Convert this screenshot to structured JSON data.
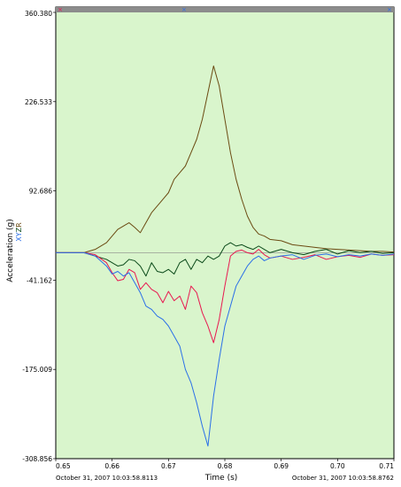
{
  "chart_data": {
    "type": "line",
    "xlabel": "Time (s)",
    "ylabel": "Acceleration (g)",
    "ylabel_letters": [
      "X",
      "Y",
      "Z",
      "R"
    ],
    "xlim": [
      0.65,
      0.71
    ],
    "ylim": [
      -308.856,
      360.38
    ],
    "yticks": [
      "360.380",
      "226.533",
      "92.686",
      "-41.162",
      "-175.009",
      "-308.856"
    ],
    "xticks": [
      "0.65",
      "0.66",
      "0.67",
      "0.68",
      "0.69",
      "0.70",
      "0.71"
    ],
    "start_timestamp": "October 31, 2007 10:03:58.8113",
    "end_timestamp": "October 31, 2007 10:03:58.8762",
    "colors": {
      "plot_bg": "#d9f5cc",
      "X": "#e8174f",
      "Y": "#2a6fe8",
      "Z": "#0b4a1a",
      "R": "#6b4a12",
      "zero_line": "#8a8a8a"
    },
    "series": [
      {
        "name": "X",
        "color": "#e8174f",
        "x": [
          0.65,
          0.655,
          0.657,
          0.659,
          0.66,
          0.661,
          0.662,
          0.663,
          0.664,
          0.665,
          0.666,
          0.667,
          0.668,
          0.669,
          0.67,
          0.671,
          0.672,
          0.673,
          0.674,
          0.675,
          0.676,
          0.677,
          0.678,
          0.679,
          0.68,
          0.681,
          0.682,
          0.683,
          0.684,
          0.685,
          0.686,
          0.687,
          0.688,
          0.69,
          0.692,
          0.694,
          0.696,
          0.698,
          0.7,
          0.702,
          0.704,
          0.706,
          0.708,
          0.71
        ],
        "y": [
          0,
          0,
          -3,
          -15,
          -30,
          -42,
          -40,
          -25,
          -30,
          -55,
          -45,
          -55,
          -60,
          -75,
          -58,
          -72,
          -65,
          -85,
          -50,
          -60,
          -90,
          -110,
          -135,
          -100,
          -50,
          -5,
          2,
          4,
          0,
          -2,
          5,
          -3,
          -8,
          -5,
          -10,
          -7,
          -3,
          -10,
          -6,
          -4,
          -7,
          -2,
          -4,
          -3
        ]
      },
      {
        "name": "Y",
        "color": "#2a6fe8",
        "x": [
          0.65,
          0.655,
          0.657,
          0.659,
          0.66,
          0.661,
          0.662,
          0.663,
          0.664,
          0.665,
          0.666,
          0.667,
          0.668,
          0.669,
          0.67,
          0.671,
          0.672,
          0.673,
          0.674,
          0.675,
          0.676,
          0.677,
          0.678,
          0.679,
          0.68,
          0.681,
          0.682,
          0.683,
          0.684,
          0.685,
          0.686,
          0.687,
          0.688,
          0.69,
          0.692,
          0.694,
          0.696,
          0.698,
          0.7,
          0.702,
          0.704,
          0.706,
          0.708,
          0.71
        ],
        "y": [
          0,
          0,
          -5,
          -20,
          -32,
          -28,
          -35,
          -30,
          -45,
          -60,
          -80,
          -85,
          -95,
          -100,
          -110,
          -125,
          -140,
          -175,
          -195,
          -225,
          -260,
          -290,
          -215,
          -160,
          -110,
          -80,
          -50,
          -35,
          -20,
          -10,
          -5,
          -12,
          -8,
          -5,
          -3,
          -10,
          -4,
          -2,
          -6,
          -3,
          -5,
          -2,
          -4,
          -2
        ]
      },
      {
        "name": "Z",
        "color": "#0b4a1a",
        "x": [
          0.65,
          0.655,
          0.657,
          0.659,
          0.66,
          0.661,
          0.662,
          0.663,
          0.664,
          0.665,
          0.666,
          0.667,
          0.668,
          0.669,
          0.67,
          0.671,
          0.672,
          0.673,
          0.674,
          0.675,
          0.676,
          0.677,
          0.678,
          0.679,
          0.68,
          0.681,
          0.682,
          0.683,
          0.684,
          0.685,
          0.686,
          0.687,
          0.688,
          0.69,
          0.692,
          0.694,
          0.696,
          0.698,
          0.7,
          0.702,
          0.704,
          0.706,
          0.708,
          0.71
        ],
        "y": [
          0,
          0,
          -5,
          -10,
          -15,
          -20,
          -18,
          -10,
          -12,
          -20,
          -35,
          -15,
          -28,
          -30,
          -25,
          -32,
          -15,
          -10,
          -25,
          -10,
          -15,
          -5,
          -10,
          -5,
          10,
          15,
          10,
          12,
          8,
          5,
          10,
          5,
          0,
          5,
          0,
          -3,
          2,
          5,
          -2,
          3,
          0,
          2,
          -1,
          0
        ]
      },
      {
        "name": "R",
        "color": "#6b4a12",
        "x": [
          0.65,
          0.655,
          0.657,
          0.659,
          0.66,
          0.661,
          0.662,
          0.663,
          0.664,
          0.665,
          0.666,
          0.667,
          0.668,
          0.669,
          0.67,
          0.671,
          0.672,
          0.673,
          0.674,
          0.675,
          0.676,
          0.677,
          0.678,
          0.679,
          0.68,
          0.681,
          0.682,
          0.683,
          0.684,
          0.685,
          0.686,
          0.687,
          0.688,
          0.69,
          0.692,
          0.694,
          0.696,
          0.698,
          0.7,
          0.702,
          0.704,
          0.706,
          0.708,
          0.71
        ],
        "y": [
          0,
          0,
          5,
          15,
          25,
          35,
          40,
          45,
          38,
          30,
          45,
          60,
          70,
          80,
          90,
          110,
          120,
          130,
          150,
          170,
          200,
          240,
          280,
          250,
          200,
          150,
          110,
          80,
          55,
          38,
          28,
          25,
          20,
          18,
          12,
          10,
          8,
          6,
          5,
          4,
          3,
          2,
          2,
          1
        ]
      }
    ]
  }
}
